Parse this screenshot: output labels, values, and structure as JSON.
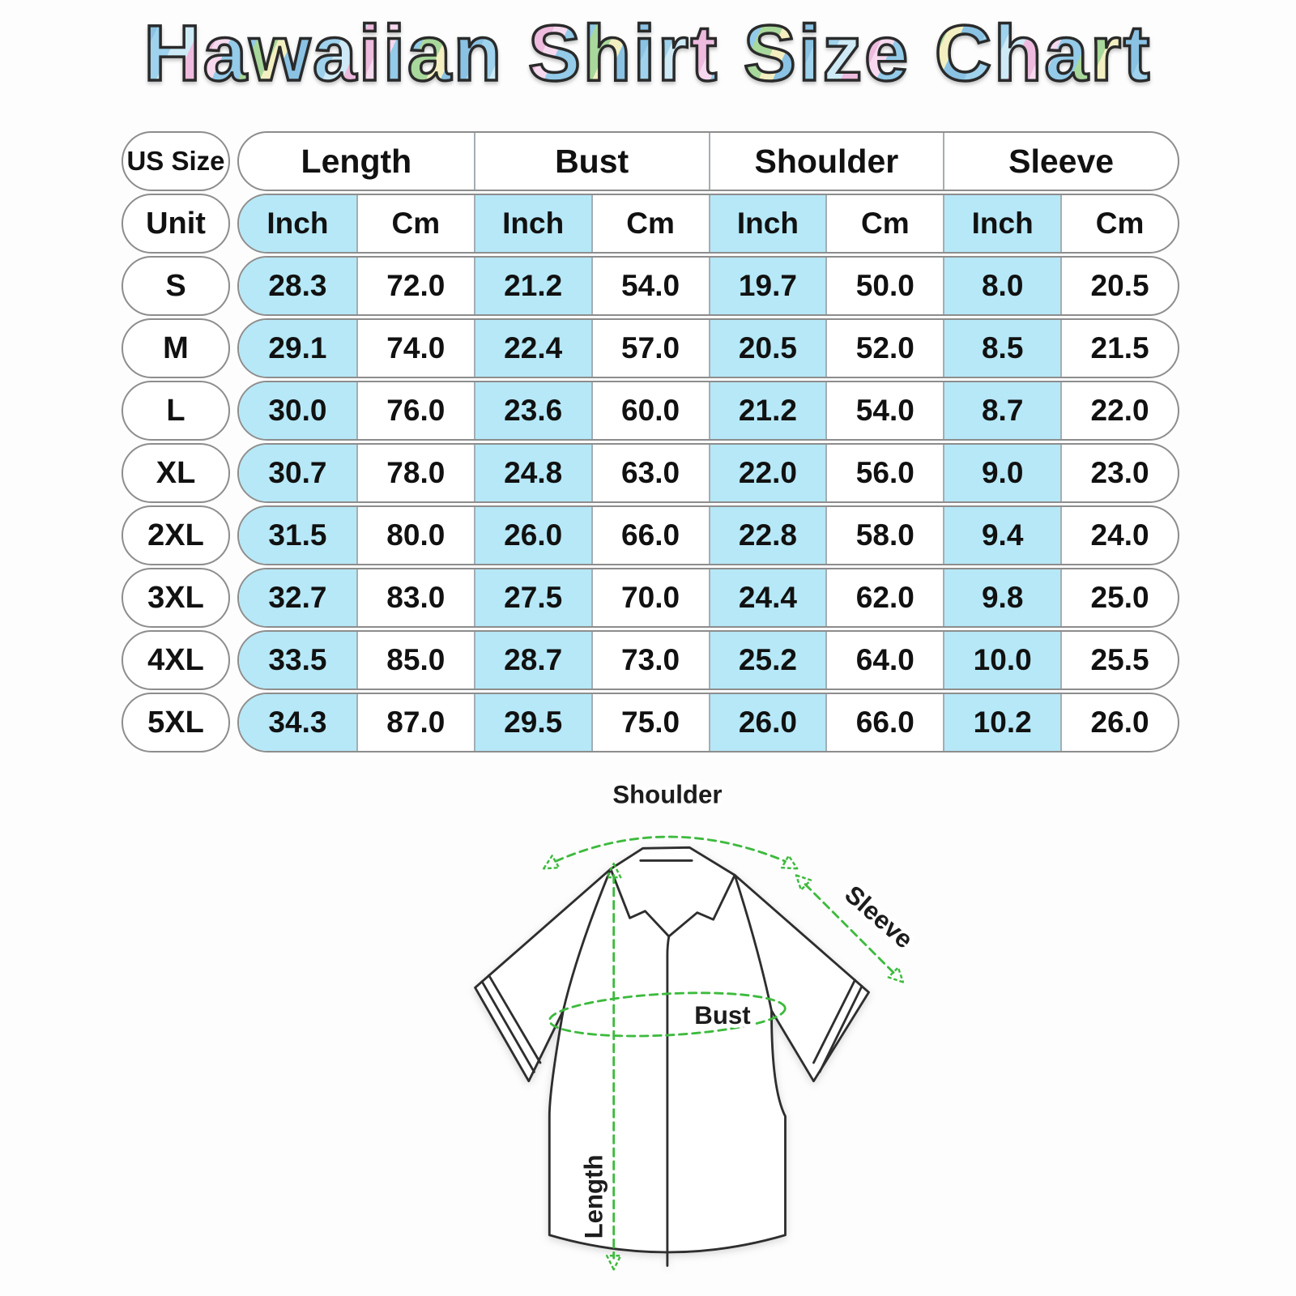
{
  "title": "Hawaiian Shirt Size Chart",
  "table": {
    "corner_label": "US Size",
    "unit_label": "Unit",
    "groups": [
      {
        "label": "Length"
      },
      {
        "label": "Bust"
      },
      {
        "label": "Shoulder"
      },
      {
        "label": "Sleeve"
      }
    ],
    "unit_columns": [
      "Inch",
      "Cm",
      "Inch",
      "Cm",
      "Inch",
      "Cm",
      "Inch",
      "Cm"
    ],
    "rows": [
      {
        "size": "S",
        "values": [
          "28.3",
          "72.0",
          "21.2",
          "54.0",
          "19.7",
          "50.0",
          "8.0",
          "20.5"
        ]
      },
      {
        "size": "M",
        "values": [
          "29.1",
          "74.0",
          "22.4",
          "57.0",
          "20.5",
          "52.0",
          "8.5",
          "21.5"
        ]
      },
      {
        "size": "L",
        "values": [
          "30.0",
          "76.0",
          "23.6",
          "60.0",
          "21.2",
          "54.0",
          "8.7",
          "22.0"
        ]
      },
      {
        "size": "XL",
        "values": [
          "30.7",
          "78.0",
          "24.8",
          "63.0",
          "22.0",
          "56.0",
          "9.0",
          "23.0"
        ]
      },
      {
        "size": "2XL",
        "values": [
          "31.5",
          "80.0",
          "26.0",
          "66.0",
          "22.8",
          "58.0",
          "9.4",
          "24.0"
        ]
      },
      {
        "size": "3XL",
        "values": [
          "32.7",
          "83.0",
          "27.5",
          "70.0",
          "24.4",
          "62.0",
          "9.8",
          "25.0"
        ]
      },
      {
        "size": "4XL",
        "values": [
          "33.5",
          "85.0",
          "28.7",
          "73.0",
          "25.2",
          "64.0",
          "10.0",
          "25.5"
        ]
      },
      {
        "size": "5XL",
        "values": [
          "34.3",
          "87.0",
          "29.5",
          "75.0",
          "26.0",
          "66.0",
          "10.2",
          "26.0"
        ]
      }
    ]
  },
  "diagram": {
    "shoulder_label": "Shoulder",
    "sleeve_label": "Sleeve",
    "bust_label": "Bust",
    "length_label": "Length"
  },
  "colors": {
    "inch_highlight": "#b6e8f7",
    "measure_green": "#3dba3d",
    "outline_gray": "#8d8d8d",
    "divider_gray": "#a2aeb5",
    "shirt_line": "#2d2d2d"
  },
  "chart_data": {
    "type": "table",
    "title": "Hawaiian Shirt Size Chart",
    "column_groups": [
      "Length",
      "Bust",
      "Shoulder",
      "Sleeve"
    ],
    "columns": [
      "US Size",
      "Length Inch",
      "Length Cm",
      "Bust Inch",
      "Bust Cm",
      "Shoulder Inch",
      "Shoulder Cm",
      "Sleeve Inch",
      "Sleeve Cm"
    ],
    "rows": [
      [
        "S",
        28.3,
        72.0,
        21.2,
        54.0,
        19.7,
        50.0,
        8.0,
        20.5
      ],
      [
        "M",
        29.1,
        74.0,
        22.4,
        57.0,
        20.5,
        52.0,
        8.5,
        21.5
      ],
      [
        "L",
        30.0,
        76.0,
        23.6,
        60.0,
        21.2,
        54.0,
        8.7,
        22.0
      ],
      [
        "XL",
        30.7,
        78.0,
        24.8,
        63.0,
        22.0,
        56.0,
        9.0,
        23.0
      ],
      [
        "2XL",
        31.5,
        80.0,
        26.0,
        66.0,
        22.8,
        58.0,
        9.4,
        24.0
      ],
      [
        "3XL",
        32.7,
        83.0,
        27.5,
        70.0,
        24.4,
        62.0,
        9.8,
        25.0
      ],
      [
        "4XL",
        33.5,
        85.0,
        28.7,
        73.0,
        25.2,
        64.0,
        10.0,
        25.5
      ],
      [
        "5XL",
        34.3,
        87.0,
        29.5,
        75.0,
        26.0,
        66.0,
        10.2,
        26.0
      ]
    ]
  }
}
